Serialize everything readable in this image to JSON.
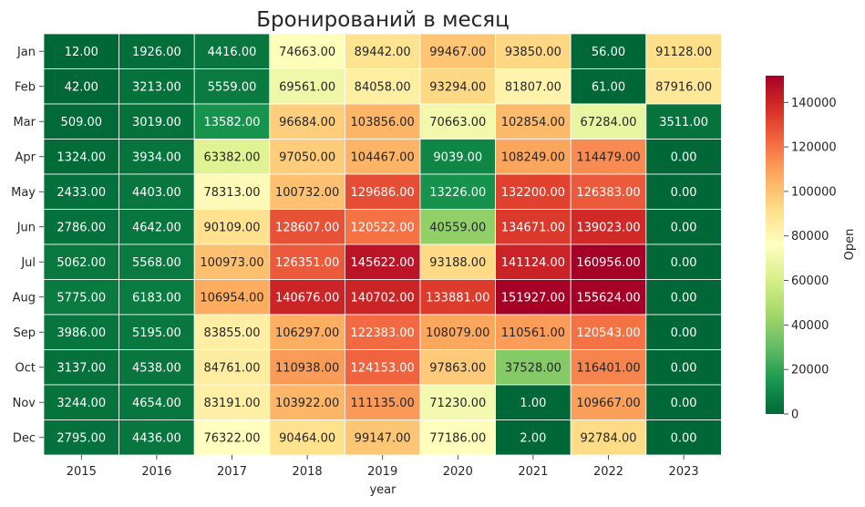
{
  "chart_data": {
    "type": "heatmap",
    "title": "Бронирований в месяц",
    "xlabel": "year",
    "ylabel": "",
    "colorbar_label": "Open",
    "x": [
      "2015",
      "2016",
      "2017",
      "2018",
      "2019",
      "2020",
      "2021",
      "2022",
      "2023"
    ],
    "y": [
      "Jan",
      "Feb",
      "Mar",
      "Apr",
      "May",
      "Jun",
      "Jul",
      "Aug",
      "Sep",
      "Oct",
      "Nov",
      "Dec"
    ],
    "values": [
      [
        12,
        1926,
        4416,
        74663,
        89442,
        99467,
        93850,
        56,
        91128
      ],
      [
        42,
        3213,
        5559,
        69561,
        84058,
        93294,
        81807,
        61,
        87916
      ],
      [
        509,
        3019,
        13582,
        96684,
        103856,
        70663,
        102854,
        67284,
        3511
      ],
      [
        1324,
        3934,
        63382,
        97050,
        104467,
        9039,
        108249,
        114479,
        0
      ],
      [
        2433,
        4403,
        78313,
        100732,
        129686,
        13226,
        132200,
        126383,
        0
      ],
      [
        2786,
        4642,
        90109,
        128607,
        120522,
        40559,
        134671,
        139023,
        0
      ],
      [
        5062,
        5568,
        100973,
        126351,
        145622,
        93188,
        141124,
        160956,
        0
      ],
      [
        5775,
        6183,
        106954,
        140676,
        140702,
        133881,
        151927,
        155624,
        0
      ],
      [
        3986,
        5195,
        83855,
        106297,
        122383,
        108079,
        110561,
        120543,
        0
      ],
      [
        3137,
        4538,
        84761,
        110938,
        124153,
        97863,
        37528,
        116401,
        0
      ],
      [
        3244,
        4654,
        83191,
        103922,
        111135,
        71230,
        1,
        109667,
        0
      ],
      [
        2795,
        4436,
        76322,
        90464,
        99147,
        77186,
        2,
        92784,
        0
      ]
    ],
    "value_format": "2 decimal places",
    "colormap": "RdYlGn_r",
    "color_range": [
      0,
      152000
    ],
    "colorbar_ticks": [
      "0",
      "20000",
      "40000",
      "60000",
      "80000",
      "100000",
      "120000",
      "140000"
    ],
    "colorbar_tick_values": [
      0,
      20000,
      40000,
      60000,
      80000,
      100000,
      120000,
      140000
    ],
    "cell_border_color": "#ffffff",
    "grid": false,
    "legend": "colorbar-right"
  }
}
